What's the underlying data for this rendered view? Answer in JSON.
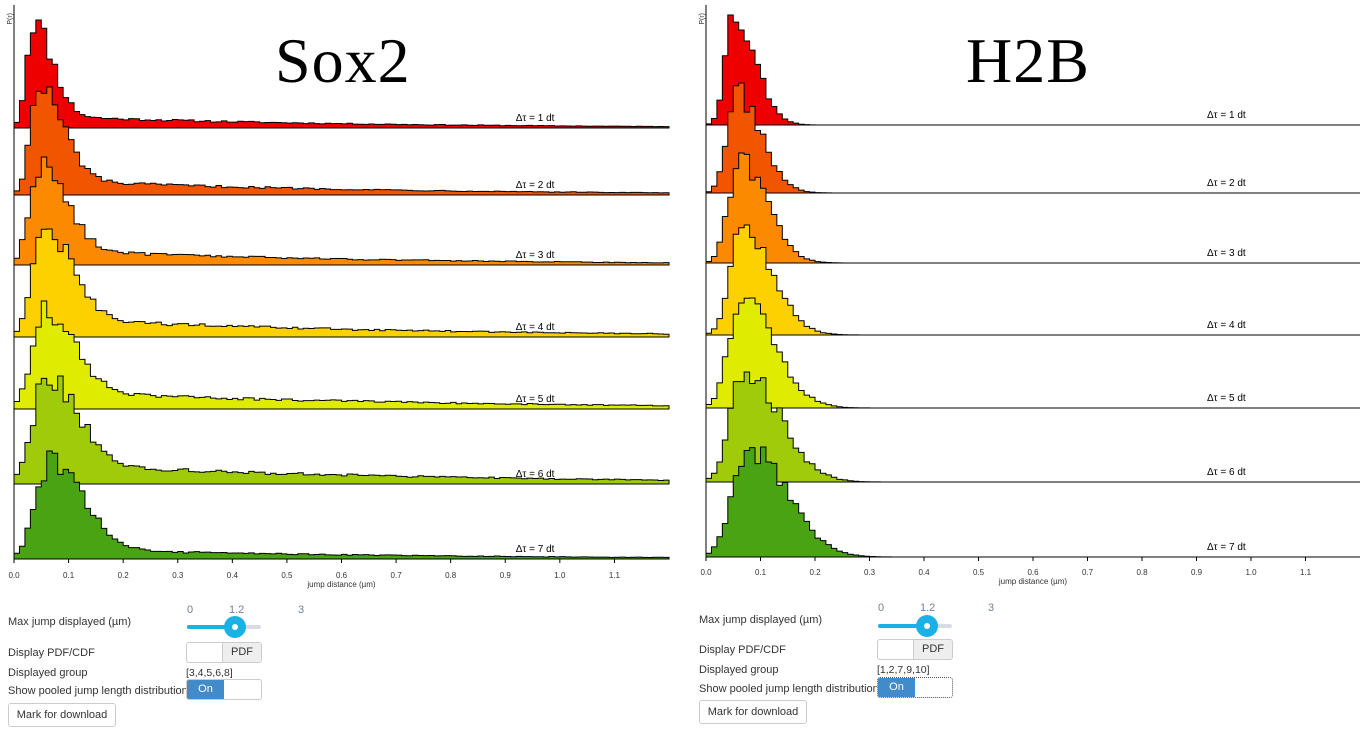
{
  "panels": [
    {
      "title": "Sox2",
      "y_label": "P(r)",
      "xlabel": "jump distance (µm)",
      "controls": {
        "max_jump_label": "Max jump displayed (µm)",
        "slider": {
          "min_label": "0",
          "value_label": "1.2",
          "max_label": "3",
          "min": 0,
          "max": 3,
          "value": 1.2
        },
        "display_label": "Display PDF/CDF",
        "display_value": "PDF",
        "group_label": "Displayed group",
        "group_value": "[3,4,5,6,8]",
        "pooled_label": "Show pooled jump length distribution:",
        "pooled_value": "On",
        "download_label": "Mark for download"
      }
    },
    {
      "title": "H2B",
      "y_label": "P(r)",
      "xlabel": "jump distance (µm)",
      "controls": {
        "max_jump_label": "Max jump displayed (µm)",
        "slider": {
          "min_label": "0",
          "value_label": "1.2",
          "max_label": "3",
          "min": 0,
          "max": 3,
          "value": 1.2
        },
        "display_label": "Display PDF/CDF",
        "display_value": "PDF",
        "group_label": "Displayed group",
        "group_value": "[1,2,7,9,10]",
        "pooled_label": "Show pooled jump length distribution:",
        "pooled_value": "On",
        "download_label": "Mark for download"
      }
    }
  ],
  "chart_data": [
    {
      "type": "area",
      "title": "Sox2",
      "xlabel": "jump distance (µm)",
      "ylabel": "P(r)",
      "xlim": [
        0,
        1.2
      ],
      "xticks": [
        "0.0",
        "0.1",
        "0.2",
        "0.3",
        "0.4",
        "0.5",
        "0.6",
        "0.7",
        "0.8",
        "0.9",
        "1.0",
        "1.1"
      ],
      "series": [
        {
          "name": "Δτ = 1 dt",
          "color": "#ee0000",
          "peak": 0.035,
          "width_r": 0.012,
          "width_f": 0.035,
          "tail": 0.13,
          "tail_decay": 0.55
        },
        {
          "name": "Δτ = 2 dt",
          "color": "#f25500",
          "peak": 0.045,
          "width_r": 0.015,
          "width_f": 0.045,
          "tail": 0.16,
          "tail_decay": 0.6
        },
        {
          "name": "Δτ = 3 dt",
          "color": "#fb8a00",
          "peak": 0.045,
          "width_r": 0.017,
          "width_f": 0.05,
          "tail": 0.18,
          "tail_decay": 0.6
        },
        {
          "name": "Δτ = 4 dt",
          "color": "#fdd100",
          "peak": 0.055,
          "width_r": 0.02,
          "width_f": 0.05,
          "tail": 0.2,
          "tail_decay": 0.65
        },
        {
          "name": "Δτ = 5 dt",
          "color": "#dfeb00",
          "peak": 0.055,
          "width_r": 0.022,
          "width_f": 0.055,
          "tail": 0.22,
          "tail_decay": 0.7
        },
        {
          "name": "Δτ = 6 dt",
          "color": "#9fcb0a",
          "peak": 0.06,
          "width_r": 0.025,
          "width_f": 0.055,
          "tail": 0.22,
          "tail_decay": 0.7
        },
        {
          "name": "Δτ = 7 dt",
          "color": "#4aa312",
          "peak": 0.065,
          "width_r": 0.025,
          "width_f": 0.06,
          "tail": 0.12,
          "tail_decay": 0.6
        }
      ]
    },
    {
      "type": "area",
      "title": "H2B",
      "xlabel": "jump distance (µm)",
      "ylabel": "P(r)",
      "xlim": [
        0,
        1.2
      ],
      "xticks": [
        "0.0",
        "0.1",
        "0.2",
        "0.3",
        "0.4",
        "0.5",
        "0.6",
        "0.7",
        "0.8",
        "0.9",
        "1.0",
        "1.1"
      ],
      "series": [
        {
          "name": "Δτ = 1 dt",
          "color": "#ee0000",
          "peak": 0.05,
          "width_r": 0.015,
          "width_f": 0.04,
          "tail": 0.0,
          "tail_decay": 0.2
        },
        {
          "name": "Δτ = 2 dt",
          "color": "#f25500",
          "peak": 0.055,
          "width_r": 0.017,
          "width_f": 0.045,
          "tail": 0.0,
          "tail_decay": 0.2
        },
        {
          "name": "Δτ = 3 dt",
          "color": "#fb8a00",
          "peak": 0.06,
          "width_r": 0.019,
          "width_f": 0.05,
          "tail": 0.0,
          "tail_decay": 0.2
        },
        {
          "name": "Δτ = 4 dt",
          "color": "#fdd100",
          "peak": 0.065,
          "width_r": 0.021,
          "width_f": 0.055,
          "tail": 0.0,
          "tail_decay": 0.2
        },
        {
          "name": "Δτ = 5 dt",
          "color": "#dfeb00",
          "peak": 0.065,
          "width_r": 0.023,
          "width_f": 0.06,
          "tail": 0.0,
          "tail_decay": 0.2
        },
        {
          "name": "Δτ = 6 dt",
          "color": "#9fcb0a",
          "peak": 0.07,
          "width_r": 0.025,
          "width_f": 0.065,
          "tail": 0.0,
          "tail_decay": 0.2
        },
        {
          "name": "Δτ = 7 dt",
          "color": "#4aa312",
          "peak": 0.075,
          "width_r": 0.027,
          "width_f": 0.07,
          "tail": 0.0,
          "tail_decay": 0.2
        }
      ]
    }
  ]
}
